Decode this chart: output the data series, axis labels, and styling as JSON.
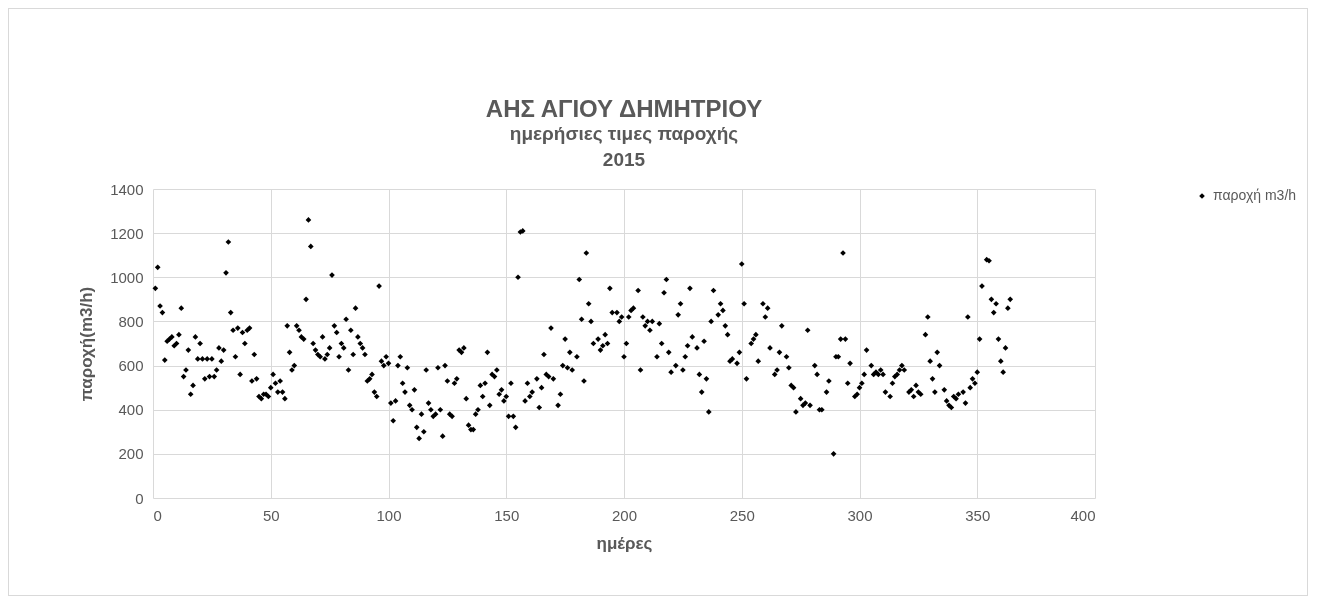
{
  "chart_data": {
    "type": "scatter",
    "title": "ΑΗΣ ΑΓΙΟΥ ΔΗΜΗΤΡΙΟΥ",
    "subtitle": "ημερήσιες τιμες παροχής\n2015",
    "xlabel": "ημέρες",
    "ylabel": "παροχή(m3/h)",
    "xlim": [
      0,
      400
    ],
    "xticks": [
      0,
      50,
      100,
      150,
      200,
      250,
      300,
      350,
      400
    ],
    "ylim": [
      0,
      1400
    ],
    "yticks": [
      0,
      200,
      400,
      600,
      800,
      1000,
      1200,
      1400
    ],
    "grid": true,
    "legend": "right",
    "marker": "diamond",
    "series": [
      {
        "name": "παροχή m3/h",
        "color": "#000000",
        "x": [
          1,
          2,
          3,
          4,
          5,
          6,
          7,
          8,
          9,
          10,
          11,
          12,
          13,
          14,
          15,
          16,
          17,
          18,
          19,
          20,
          21,
          22,
          23,
          24,
          25,
          26,
          27,
          28,
          29,
          30,
          31,
          32,
          33,
          34,
          35,
          36,
          37,
          38,
          39,
          40,
          41,
          42,
          43,
          44,
          45,
          46,
          47,
          48,
          49,
          50,
          51,
          52,
          53,
          54,
          55,
          56,
          57,
          58,
          59,
          60,
          61,
          62,
          63,
          64,
          65,
          66,
          67,
          68,
          69,
          70,
          71,
          72,
          73,
          74,
          75,
          76,
          77,
          78,
          79,
          80,
          81,
          82,
          83,
          84,
          85,
          86,
          87,
          88,
          89,
          90,
          91,
          92,
          93,
          94,
          95,
          96,
          97,
          98,
          99,
          100,
          101,
          102,
          103,
          104,
          105,
          106,
          107,
          108,
          109,
          110,
          111,
          112,
          113,
          114,
          115,
          116,
          117,
          118,
          119,
          120,
          121,
          122,
          123,
          124,
          125,
          126,
          127,
          128,
          129,
          130,
          131,
          132,
          133,
          134,
          135,
          136,
          137,
          138,
          139,
          140,
          141,
          142,
          143,
          144,
          145,
          146,
          147,
          148,
          149,
          150,
          151,
          152,
          153,
          154,
          155,
          156,
          157,
          158,
          159,
          160,
          161,
          163,
          164,
          165,
          166,
          167,
          168,
          169,
          170,
          172,
          173,
          174,
          175,
          176,
          177,
          178,
          180,
          181,
          182,
          183,
          184,
          185,
          186,
          187,
          189,
          190,
          191,
          192,
          193,
          194,
          195,
          197,
          198,
          199,
          200,
          201,
          202,
          203,
          204,
          206,
          207,
          208,
          209,
          210,
          211,
          212,
          214,
          215,
          216,
          217,
          218,
          219,
          220,
          222,
          223,
          224,
          225,
          226,
          227,
          228,
          229,
          231,
          232,
          233,
          234,
          235,
          236,
          237,
          238,
          240,
          241,
          242,
          243,
          244,
          245,
          246,
          248,
          249,
          250,
          251,
          252,
          254,
          255,
          256,
          257,
          259,
          260,
          261,
          262,
          264,
          265,
          266,
          267,
          269,
          270,
          271,
          272,
          273,
          275,
          276,
          277,
          278,
          279,
          281,
          282,
          283,
          284,
          286,
          287,
          289,
          290,
          291,
          292,
          293,
          294,
          295,
          296,
          298,
          299,
          300,
          301,
          302,
          303,
          305,
          306,
          307,
          308,
          309,
          310,
          311,
          313,
          314,
          315,
          316,
          317,
          318,
          319,
          321,
          322,
          323,
          324,
          325,
          326,
          328,
          329,
          330,
          331,
          332,
          333,
          334,
          336,
          337,
          338,
          339,
          340,
          341,
          342,
          344,
          345,
          346,
          347,
          348,
          349,
          350,
          351,
          352,
          354,
          355,
          356,
          357,
          358,
          359,
          360,
          361,
          362,
          363,
          364
        ],
        "values": [
          950,
          1045,
          870,
          840,
          625,
          710,
          720,
          730,
          690,
          700,
          740,
          860,
          550,
          580,
          670,
          470,
          510,
          730,
          630,
          700,
          630,
          540,
          630,
          550,
          630,
          550,
          580,
          680,
          620,
          670,
          1020,
          1160,
          840,
          760,
          640,
          770,
          560,
          750,
          700,
          760,
          770,
          530,
          650,
          540,
          460,
          450,
          470,
          470,
          460,
          500,
          560,
          520,
          480,
          530,
          480,
          450,
          780,
          660,
          580,
          600,
          780,
          760,
          730,
          720,
          900,
          1260,
          1140,
          700,
          670,
          650,
          640,
          730,
          630,
          650,
          680,
          1010,
          780,
          750,
          640,
          700,
          680,
          810,
          580,
          760,
          650,
          860,
          730,
          700,
          680,
          650,
          530,
          540,
          560,
          480,
          460,
          960,
          620,
          600,
          640,
          610,
          430,
          350,
          440,
          600,
          640,
          520,
          480,
          590,
          420,
          400,
          490,
          320,
          270,
          380,
          300,
          580,
          430,
          400,
          370,
          380,
          590,
          400,
          280,
          600,
          530,
          380,
          370,
          520,
          540,
          670,
          660,
          680,
          450,
          330,
          310,
          310,
          380,
          400,
          510,
          460,
          520,
          660,
          420,
          560,
          550,
          580,
          470,
          490,
          440,
          460,
          370,
          520,
          370,
          320,
          1000,
          1205,
          1210,
          440,
          520,
          460,
          480,
          540,
          410,
          500,
          650,
          560,
          550,
          770,
          540,
          420,
          470,
          600,
          720,
          590,
          660,
          580,
          640,
          990,
          810,
          530,
          1110,
          880,
          800,
          700,
          720,
          670,
          690,
          740,
          700,
          950,
          840,
          840,
          800,
          820,
          640,
          700,
          820,
          850,
          860,
          940,
          580,
          820,
          780,
          800,
          760,
          800,
          640,
          790,
          700,
          930,
          990,
          660,
          570,
          600,
          830,
          880,
          580,
          640,
          690,
          950,
          730,
          680,
          560,
          480,
          710,
          540,
          390,
          800,
          940,
          830,
          880,
          850,
          780,
          740,
          620,
          630,
          610,
          660,
          1060,
          880,
          540,
          700,
          720,
          740,
          620,
          880,
          820,
          860,
          680,
          560,
          580,
          660,
          780,
          640,
          590,
          510,
          500,
          390,
          450,
          420,
          430,
          760,
          420,
          600,
          560,
          400,
          400,
          480,
          530,
          200,
          640,
          640,
          720,
          1110,
          720,
          520,
          610,
          460,
          470,
          500,
          520,
          560,
          670,
          600,
          560,
          570,
          560,
          580,
          560,
          480,
          460,
          520,
          550,
          560,
          580,
          600,
          580,
          480,
          490,
          460,
          510,
          480,
          470,
          740,
          820,
          620,
          540,
          480,
          660,
          600,
          490,
          440,
          420,
          410,
          460,
          450,
          470,
          480,
          430,
          820,
          500,
          540,
          520,
          570,
          720,
          960,
          1080,
          1075,
          900,
          840,
          880,
          720,
          620,
          570,
          680,
          860,
          900
        ]
      }
    ]
  }
}
